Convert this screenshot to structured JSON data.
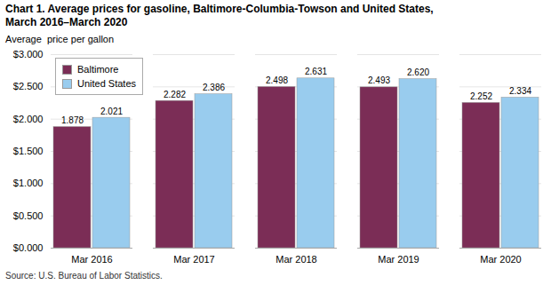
{
  "chart_data": {
    "type": "bar",
    "title": "Chart 1. Average prices for gasoline, Baltimore-Columbia-Towson and United States,",
    "subtitle": "March 2016–March 2020",
    "ylabel": "Average  price per gallon",
    "source": "Source: U.S. Bureau of Labor Statistics.",
    "categories": [
      "Mar 2016",
      "Mar 2017",
      "Mar 2018",
      "Mar 2019",
      "Mar 2020"
    ],
    "series": [
      {
        "name": "Baltimore",
        "color": "#7B2D56",
        "values": [
          1.878,
          2.282,
          2.498,
          2.493,
          2.252
        ],
        "value_labels": [
          "1.878",
          "2.282",
          "2.498",
          "2.493",
          "2.252"
        ]
      },
      {
        "name": "United States",
        "color": "#99CCEE",
        "values": [
          2.021,
          2.386,
          2.631,
          2.62,
          2.334
        ],
        "value_labels": [
          "2.021",
          "2.386",
          "2.631",
          "2.620",
          "2.334"
        ]
      }
    ],
    "ylim": [
      0,
      3.0
    ],
    "yticks": [
      {
        "value": 0.0,
        "label": "$0.000"
      },
      {
        "value": 0.5,
        "label": "$0.500"
      },
      {
        "value": 1.0,
        "label": "$1.000"
      },
      {
        "value": 1.5,
        "label": "$1.500"
      },
      {
        "value": 2.0,
        "label": "$2.000"
      },
      {
        "value": 2.5,
        "label": "$2.500"
      },
      {
        "value": 3.0,
        "label": "$3.000"
      }
    ],
    "grid": true,
    "legend": "upper left",
    "data_labels": true
  }
}
